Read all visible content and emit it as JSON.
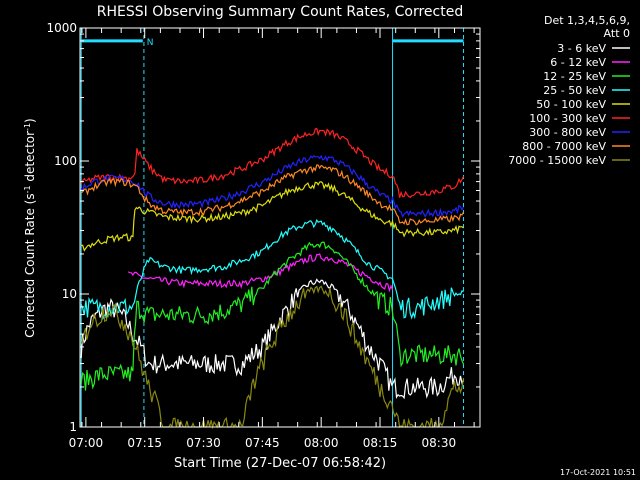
{
  "chart_data": {
    "type": "line",
    "title": "RHESSI Observing Summary Count Rates, Corrected",
    "xlabel": "Start Time (27-Dec-07 06:58:42)",
    "ylabel_main": "Corrected Count Rate (s",
    "ylabel_sup1": "-1",
    "ylabel_mid": " detector",
    "ylabel_sup2": "-1",
    "ylabel_end": ")",
    "yscale": "log",
    "ylim": [
      1,
      1000
    ],
    "xlim_minutes": [
      418.5,
      520.5
    ],
    "x_ticks": [
      {
        "m": 420,
        "label": "07:00"
      },
      {
        "m": 435,
        "label": "07:15"
      },
      {
        "m": 450,
        "label": "07:30"
      },
      {
        "m": 465,
        "label": "07:45"
      },
      {
        "m": 480,
        "label": "08:00"
      },
      {
        "m": 495,
        "label": "08:15"
      },
      {
        "m": 510,
        "label": "08:30"
      }
    ],
    "y_ticks": [
      {
        "v": 1,
        "label": "1"
      },
      {
        "v": 10,
        "label": "10"
      },
      {
        "v": 100,
        "label": "100"
      },
      {
        "v": 1000,
        "label": "1000"
      }
    ],
    "legend_header": [
      "Det 1,3,4,5,6,9,",
      "Att 0"
    ],
    "legend_placement": "right",
    "night_boundaries_min": [
      418.8,
      434.8,
      498.2,
      516.3
    ],
    "saa_bars": [
      {
        "from": 418.8,
        "to": 434.5,
        "level": 800,
        "label": "N"
      },
      {
        "from": 498.2,
        "to": 516.3,
        "level": 800,
        "label": ""
      }
    ],
    "series": [
      {
        "name": "3 - 6 keV",
        "color": "#ffffff",
        "x": [
          418.8,
          421,
          424,
          426,
          428,
          430,
          432,
          434,
          436,
          440,
          445,
          450,
          455,
          460,
          465,
          468,
          471,
          474,
          477,
          480,
          483,
          486,
          489,
          492,
          495,
          498,
          500,
          505,
          510,
          514,
          516.3
        ],
        "y": [
          4,
          6,
          7.5,
          8,
          7.5,
          6.5,
          5,
          4,
          3,
          3,
          3,
          3,
          3,
          3,
          4,
          5.5,
          7.5,
          10,
          12,
          12.5,
          11,
          8.5,
          6,
          4,
          3,
          2,
          2,
          2,
          2,
          2.5,
          2.5
        ]
      },
      {
        "name": "6 - 12 keV",
        "color": "#ff22ff",
        "x": [
          430.8,
          432,
          434,
          436,
          440,
          445,
          450,
          455,
          460,
          465,
          468,
          471,
          474,
          477,
          480,
          483,
          486,
          489,
          492,
          495,
          498.2
        ],
        "y": [
          14,
          14,
          13.5,
          13,
          12.5,
          12,
          12,
          12,
          12,
          13,
          14,
          15.5,
          17,
          18.5,
          19,
          18.5,
          17,
          15,
          13.5,
          12,
          11
        ]
      },
      {
        "name": "12 - 25 keV",
        "color": "#22ee22",
        "x": [
          418.8,
          424,
          430,
          432,
          433,
          436,
          440,
          445,
          450,
          455,
          460,
          465,
          468,
          471,
          474,
          477,
          480,
          483,
          486,
          489,
          492,
          495,
          498,
          500,
          505,
          510,
          514,
          516.3
        ],
        "y": [
          2.2,
          2.5,
          2.5,
          2.5,
          8,
          7,
          7,
          7,
          7,
          7.5,
          8.5,
          11,
          14,
          17,
          20,
          23,
          24,
          22,
          18,
          14,
          11,
          9,
          8,
          3.5,
          3.5,
          3.5,
          3.5,
          3.5
        ]
      },
      {
        "name": "25 - 50 keV",
        "color": "#22ffff",
        "x": [
          418.8,
          422,
          426,
          430,
          432,
          436,
          440,
          445,
          450,
          455,
          460,
          465,
          468,
          471,
          474,
          477,
          480,
          483,
          486,
          489,
          492,
          495,
          498.2,
          500,
          505,
          510,
          514,
          516.3
        ],
        "y": [
          8,
          8,
          8,
          8,
          8,
          18,
          16,
          15,
          15.5,
          16,
          18,
          21,
          25,
          29,
          32,
          34,
          34,
          31,
          26,
          21,
          17,
          15,
          13,
          8,
          8,
          9,
          10,
          10
        ]
      },
      {
        "name": "50 - 100 keV",
        "color": "#dddd11",
        "x": [
          418.8,
          422,
          426,
          430,
          432,
          432.5,
          435,
          440,
          445,
          450,
          455,
          460,
          465,
          468,
          471,
          474,
          477,
          480,
          483,
          486,
          489,
          492,
          495,
          498.2,
          500,
          505,
          510,
          514,
          516.3
        ],
        "y": [
          22,
          24,
          26,
          27,
          26,
          45,
          42,
          38,
          37,
          37,
          38,
          41,
          46,
          52,
          58,
          63,
          66,
          66,
          62,
          55,
          47,
          41,
          36,
          34,
          29,
          29,
          29,
          30,
          32
        ]
      },
      {
        "name": "100 - 300 keV",
        "color": "#ff2222",
        "x": [
          418.8,
          422,
          426,
          429,
          431,
          432.5,
          433,
          435,
          437,
          440,
          445,
          450,
          455,
          460,
          465,
          468,
          471,
          474,
          477,
          480,
          483,
          486,
          489,
          492,
          495,
          498.2,
          500,
          505,
          510,
          514,
          516.3
        ],
        "y": [
          68,
          74,
          76,
          75,
          74,
          80,
          120,
          100,
          85,
          72,
          70,
          72,
          78,
          88,
          103,
          118,
          135,
          150,
          162,
          168,
          160,
          143,
          122,
          102,
          86,
          78,
          56,
          57,
          60,
          65,
          75
        ]
      },
      {
        "name": "300 - 800 keV",
        "color": "#2222ff",
        "x": [
          418.8,
          422,
          426,
          429,
          431,
          433,
          435,
          437,
          440,
          445,
          450,
          455,
          460,
          465,
          468,
          471,
          474,
          477,
          480,
          483,
          486,
          489,
          492,
          495,
          498.2,
          500,
          505,
          510,
          514,
          516.3
        ],
        "y": [
          62,
          70,
          74,
          74,
          72,
          68,
          58,
          52,
          48,
          47,
          48,
          52,
          59,
          69,
          78,
          88,
          97,
          104,
          107,
          103,
          92,
          79,
          66,
          56,
          50,
          40,
          40,
          41,
          42,
          45
        ]
      },
      {
        "name": "800 - 7000 keV",
        "color": "#ff8822",
        "x": [
          418.8,
          422,
          426,
          429,
          431,
          433,
          435,
          437,
          440,
          445,
          450,
          455,
          460,
          465,
          468,
          471,
          474,
          477,
          480,
          483,
          486,
          489,
          492,
          495,
          498.2,
          500,
          505,
          510,
          514,
          516.3
        ],
        "y": [
          56,
          64,
          70,
          70,
          68,
          64,
          52,
          46,
          42,
          41,
          42,
          45,
          51,
          59,
          67,
          75,
          82,
          87,
          89,
          86,
          77,
          66,
          56,
          48,
          43,
          35,
          35,
          36,
          37,
          39
        ]
      },
      {
        "name": "7000 - 15000 keV",
        "color": "#888811",
        "x": [
          418.8,
          421,
          424,
          426,
          428,
          430,
          432,
          434,
          436,
          438,
          440,
          445,
          450,
          455,
          460,
          465,
          468,
          471,
          474,
          477,
          480,
          483,
          486,
          489,
          492,
          495,
          498,
          500,
          505,
          510,
          514,
          516.3
        ],
        "y": [
          4,
          6,
          7,
          8,
          7,
          6,
          4.5,
          3,
          2,
          1.5,
          1,
          1,
          1,
          1,
          1,
          3,
          4.5,
          6.5,
          8.5,
          10.5,
          11,
          9.5,
          7,
          4.5,
          3,
          2,
          1.5,
          1,
          1,
          1,
          2,
          2
        ]
      }
    ]
  },
  "footer": {
    "date_stamp": "17-Oct-2021 10:51"
  }
}
